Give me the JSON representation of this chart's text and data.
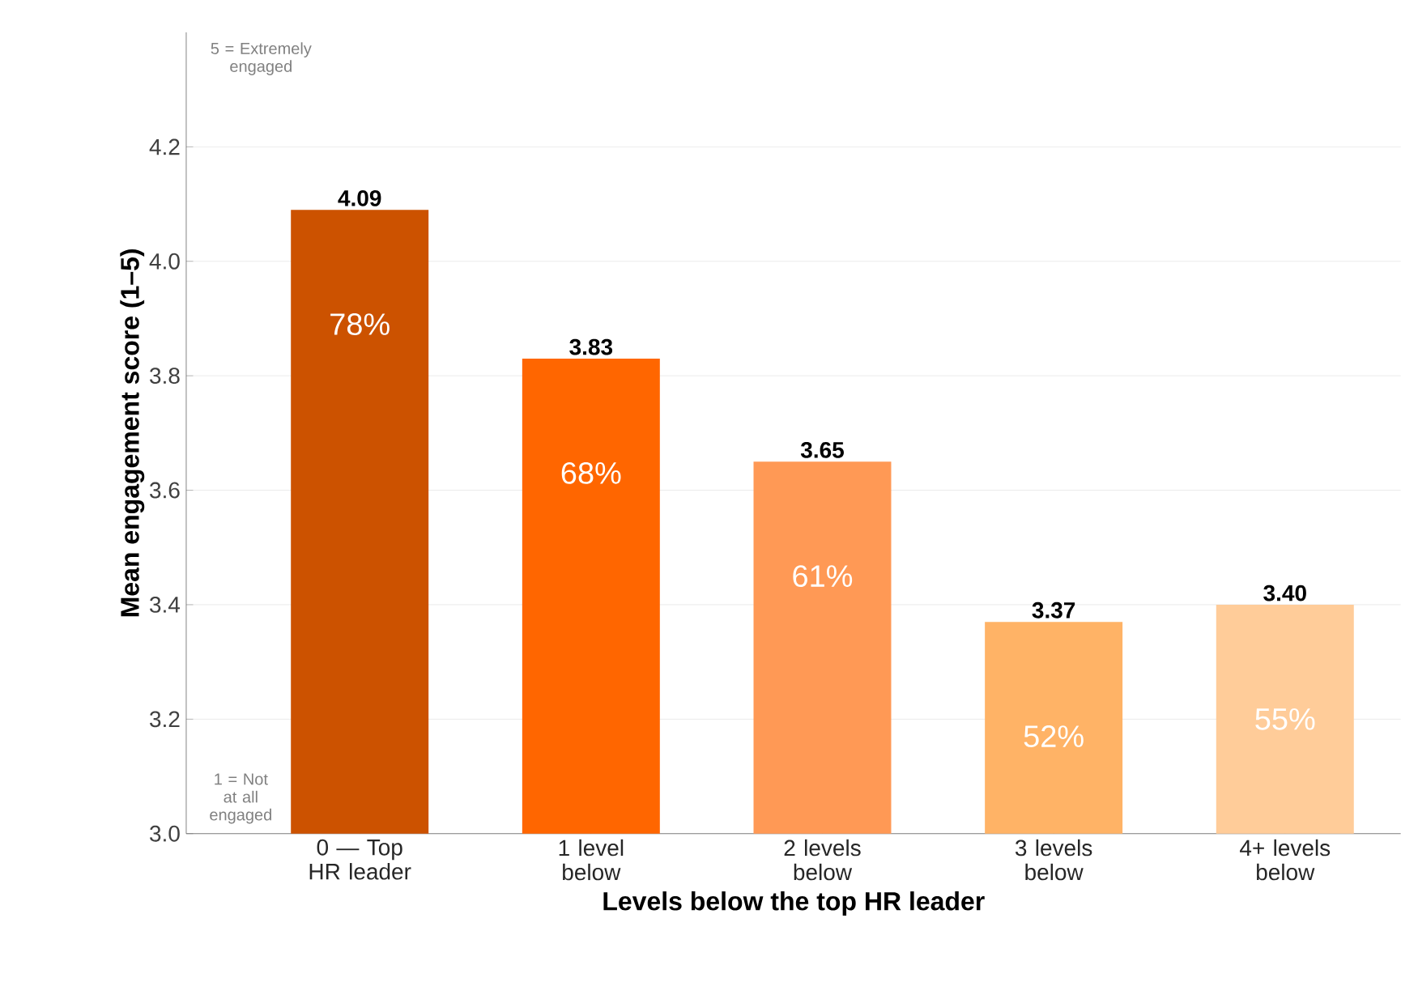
{
  "chart_data": {
    "type": "bar",
    "xlabel": "Levels below the top HR leader",
    "ylabel": "Mean engagement score  (1–5)",
    "categories": [
      "0 — Top HR leader",
      "1 level below",
      "2 levels below",
      "3 levels below",
      "4+ levels below"
    ],
    "values": [
      4.09,
      3.83,
      3.65,
      3.37,
      3.4
    ],
    "value_labels": [
      "4.09",
      "3.83",
      "3.65",
      "3.37",
      "3.40"
    ],
    "colors": [
      "#cc5200",
      "#ff6600",
      "#ff9955",
      "#ffb366",
      "#ffcc99"
    ],
    "ylim": [
      3.0,
      4.4
    ],
    "yticks": [
      {
        "value": 3.0,
        "label": "3.0"
      },
      {
        "value": 3.2,
        "label": "3.2"
      },
      {
        "value": 3.4,
        "label": "3.4"
      },
      {
        "value": 3.6,
        "label": "3.6"
      },
      {
        "value": 3.8,
        "label": "3.8"
      },
      {
        "value": 4.0,
        "label": "4.0"
      },
      {
        "value": 4.2,
        "label": "4.2"
      }
    ],
    "grid": "y",
    "annotations": [
      "78%",
      "68%",
      "61%",
      "52%",
      "55%",
      "5 = Extremely engaged",
      "1 = Not at all engaged"
    ]
  }
}
